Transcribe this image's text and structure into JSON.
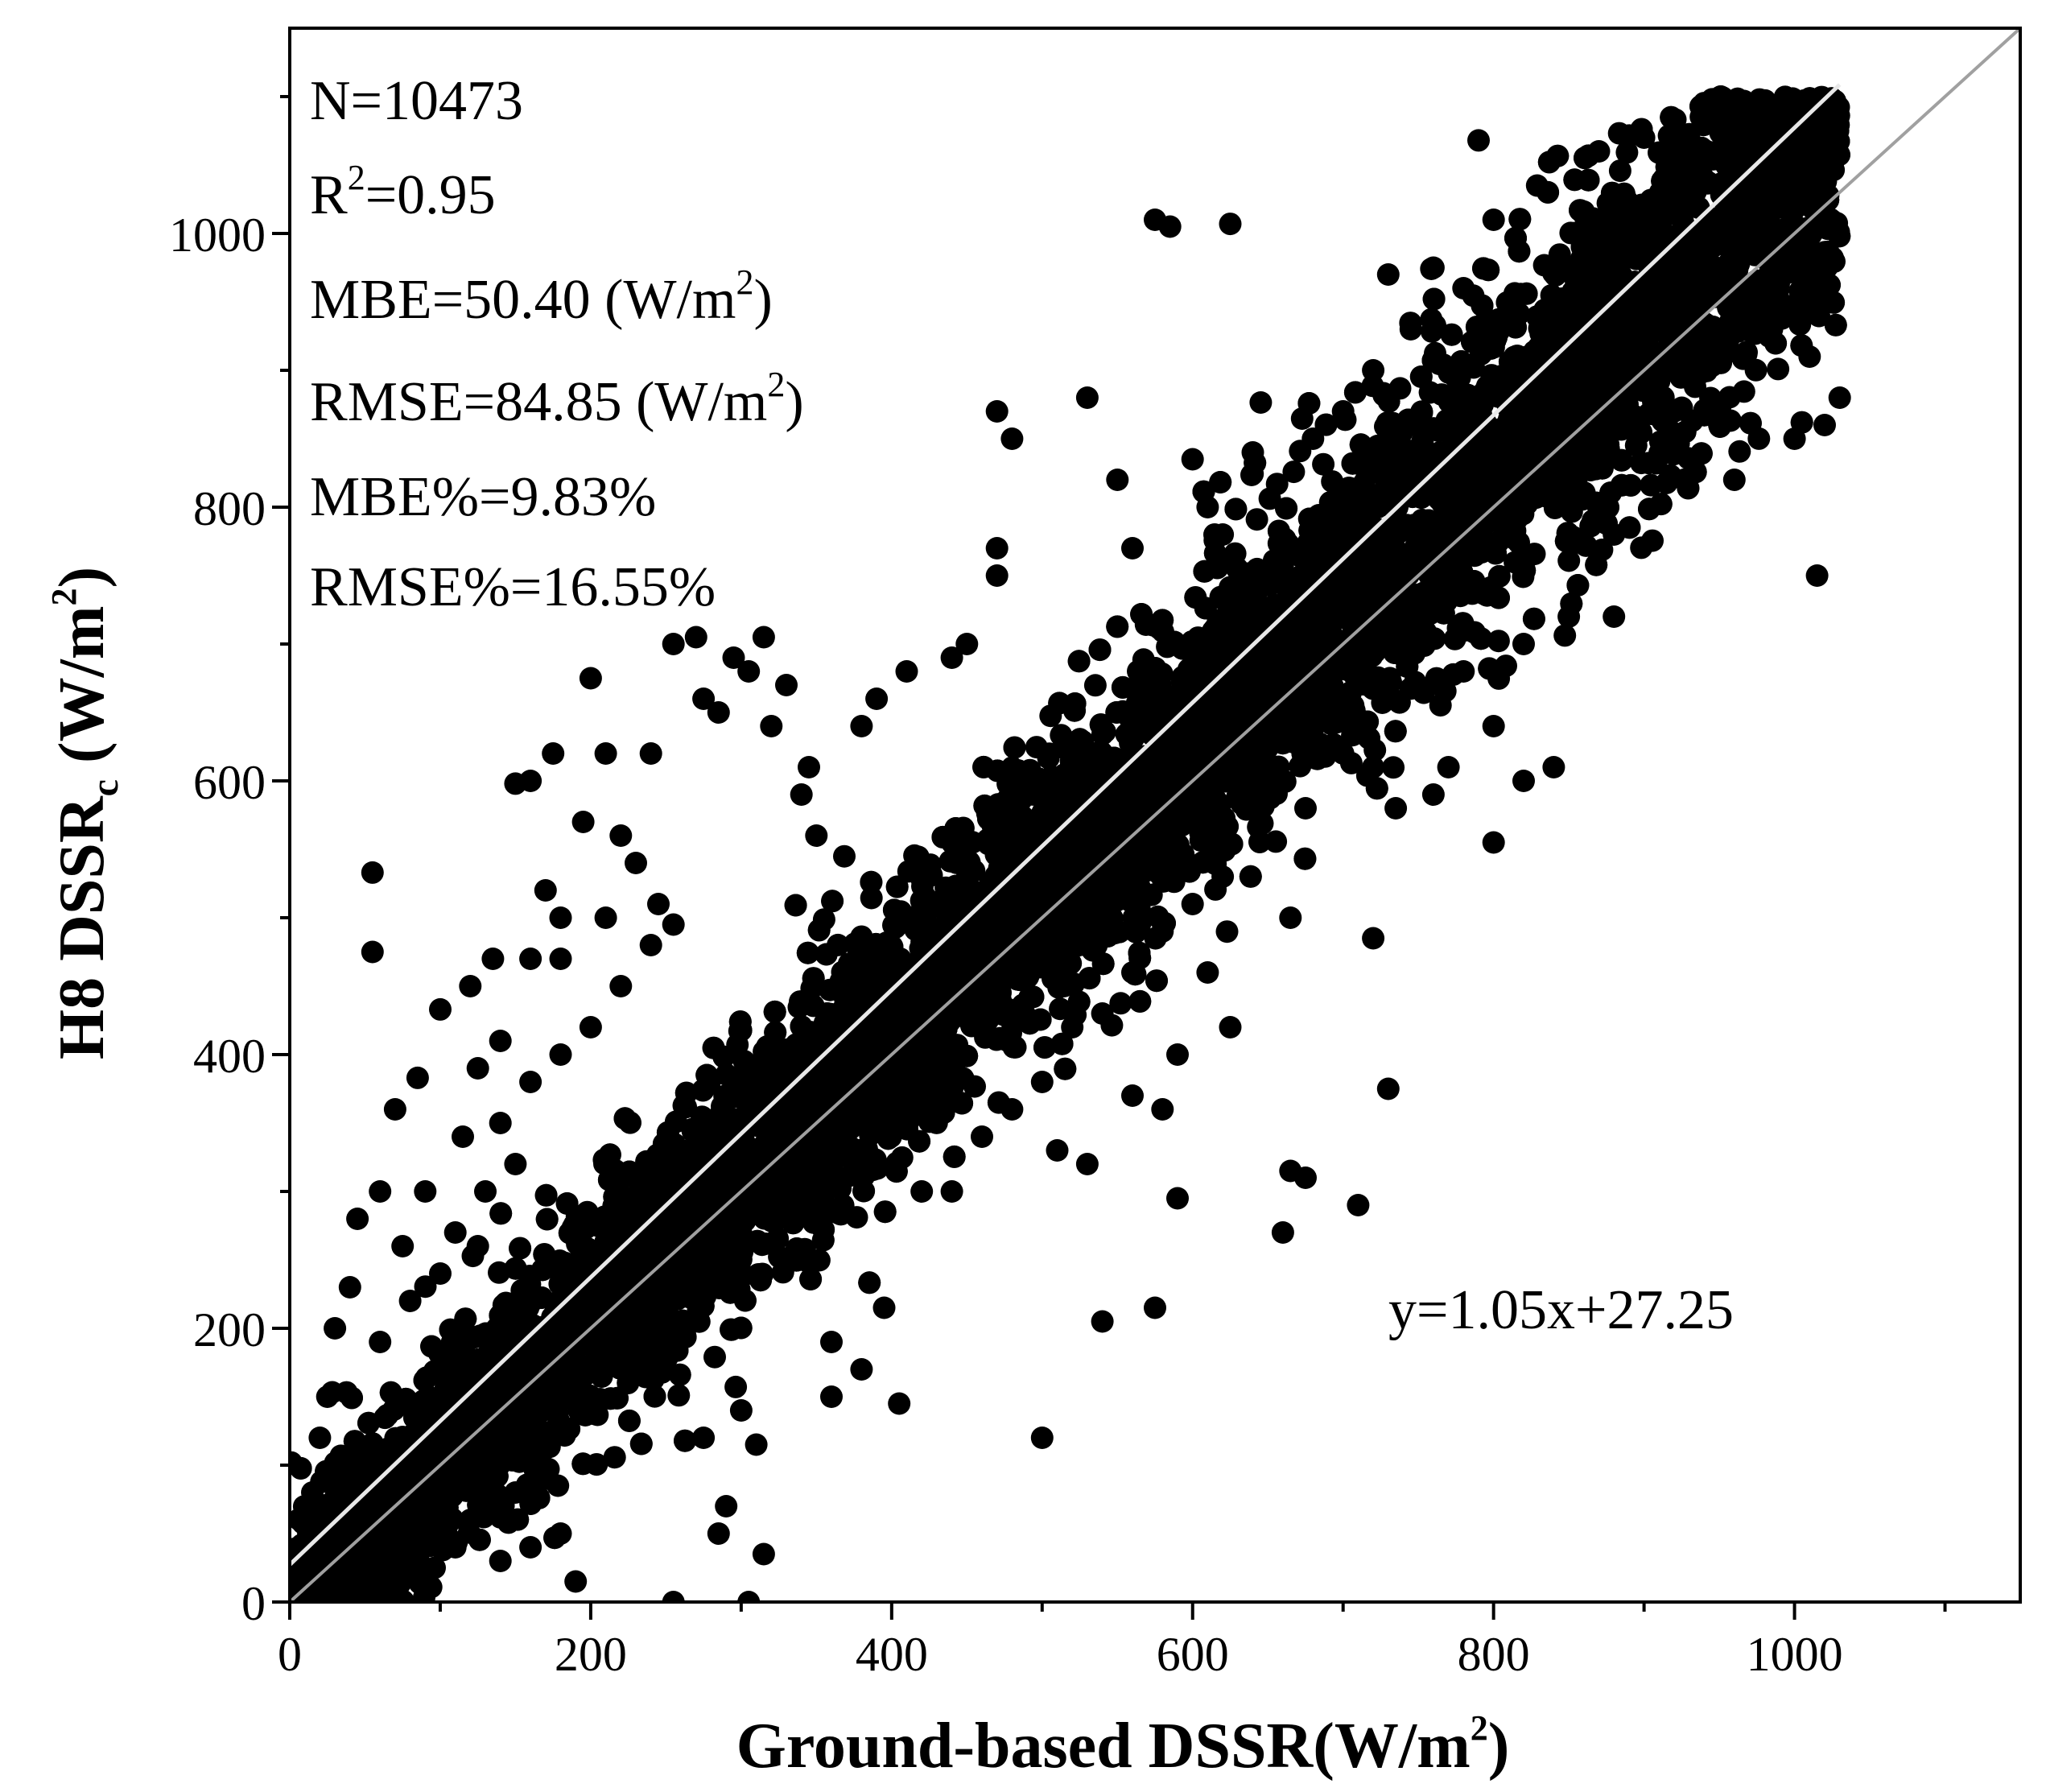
{
  "chart_data": {
    "type": "scatter",
    "xlabel": {
      "main": "Ground-based DSSR(W/m",
      "sup": "2",
      "tail": ")"
    },
    "ylabel": {
      "main": "H8 DSSR",
      "sub": "c",
      "mid": " (W/m",
      "sup": "2",
      "tail": ")"
    },
    "xlim": [
      0,
      1150
    ],
    "ylim": [
      0,
      1150
    ],
    "xticks": [
      0,
      200,
      400,
      600,
      800,
      1000
    ],
    "yticks": [
      0,
      200,
      400,
      600,
      800,
      1000
    ],
    "grid": false,
    "stats": {
      "n": "N=10473",
      "r2": {
        "main": "R",
        "sup": "2",
        "tail": "=0.95"
      },
      "mbe": {
        "main": "MBE=50.40 (W/m",
        "sup": "2",
        "tail": ")"
      },
      "rmse": {
        "main": "RMSE=84.85 (W/m",
        "sup": "2",
        "tail": ")"
      },
      "mbe_pct": "MBE%=9.83%",
      "rmse_pct": "RMSE%=16.55%"
    },
    "fit_equation": "y=1.05x+27.25",
    "fit_line": {
      "slope": 1.05,
      "intercept": 27.25,
      "x_range": [
        0,
        1030
      ]
    },
    "identity_line": {
      "x_range": [
        0,
        1150
      ]
    },
    "point_color": "#000000",
    "line_color": "#a0a0a0",
    "fit_line_color": "#e8e8e8",
    "outliers": [
      [
        55,
        533
      ],
      [
        55,
        475
      ],
      [
        70,
        360
      ],
      [
        85,
        383
      ],
      [
        100,
        433
      ],
      [
        120,
        450
      ],
      [
        135,
        470
      ],
      [
        150,
        598
      ],
      [
        160,
        600
      ],
      [
        175,
        620
      ],
      [
        170,
        520
      ],
      [
        180,
        470
      ],
      [
        195,
        570
      ],
      [
        200,
        675
      ],
      [
        210,
        620
      ],
      [
        220,
        560
      ],
      [
        230,
        540
      ],
      [
        240,
        620
      ],
      [
        245,
        510
      ],
      [
        255,
        495
      ],
      [
        255,
        700
      ],
      [
        270,
        705
      ],
      [
        275,
        660
      ],
      [
        285,
        650
      ],
      [
        295,
        690
      ],
      [
        305,
        680
      ],
      [
        315,
        705
      ],
      [
        320,
        640
      ],
      [
        330,
        670
      ],
      [
        340,
        590
      ],
      [
        345,
        610
      ],
      [
        350,
        560
      ],
      [
        380,
        640
      ],
      [
        390,
        660
      ],
      [
        410,
        680
      ],
      [
        440,
        690
      ],
      [
        450,
        700
      ],
      [
        470,
        770
      ],
      [
        470,
        750
      ],
      [
        480,
        850
      ],
      [
        470,
        870
      ],
      [
        530,
        880
      ],
      [
        550,
        820
      ],
      [
        560,
        770
      ],
      [
        575,
        1010
      ],
      [
        585,
        1005
      ],
      [
        625,
        1007
      ],
      [
        600,
        835
      ],
      [
        610,
        800
      ],
      [
        620,
        780
      ],
      [
        640,
        840
      ],
      [
        680,
        850
      ],
      [
        700,
        870
      ],
      [
        720,
        900
      ],
      [
        730,
        970
      ],
      [
        745,
        930
      ],
      [
        760,
        975
      ],
      [
        780,
        960
      ],
      [
        790,
        1068
      ],
      [
        800,
        1010
      ],
      [
        870,
        1060
      ],
      [
        900,
        1070
      ],
      [
        1000,
        1000
      ],
      [
        1010,
        910
      ],
      [
        1020,
        860
      ],
      [
        1030,
        880
      ],
      [
        950,
        860
      ],
      [
        960,
        820
      ],
      [
        1000,
        850
      ],
      [
        1015,
        750
      ],
      [
        985,
        930
      ],
      [
        940,
        900
      ],
      [
        920,
        870
      ],
      [
        880,
        780
      ],
      [
        880,
        720
      ],
      [
        850,
        720
      ],
      [
        820,
        700
      ],
      [
        800,
        640
      ],
      [
        780,
        680
      ],
      [
        760,
        590
      ],
      [
        770,
        610
      ],
      [
        800,
        555
      ],
      [
        820,
        600
      ],
      [
        840,
        610
      ],
      [
        720,
        610
      ],
      [
        735,
        580
      ],
      [
        700,
        620
      ],
      [
        675,
        580
      ],
      [
        665,
        500
      ],
      [
        720,
        485
      ],
      [
        730,
        375
      ],
      [
        610,
        460
      ],
      [
        625,
        420
      ],
      [
        590,
        400
      ],
      [
        590,
        295
      ],
      [
        575,
        215
      ],
      [
        540,
        205
      ],
      [
        500,
        120
      ],
      [
        530,
        320
      ],
      [
        510,
        330
      ],
      [
        560,
        370
      ],
      [
        580,
        360
      ],
      [
        660,
        270
      ],
      [
        665,
        315
      ],
      [
        675,
        310
      ],
      [
        710,
        290
      ],
      [
        405,
        145
      ],
      [
        380,
        170
      ],
      [
        360,
        190
      ],
      [
        360,
        150
      ],
      [
        300,
        140
      ],
      [
        310,
        115
      ],
      [
        275,
        120
      ],
      [
        290,
        70
      ],
      [
        285,
        50
      ],
      [
        315,
        35
      ],
      [
        305,
        0
      ],
      [
        255,
        0
      ],
      [
        190,
        15
      ],
      [
        180,
        50
      ],
      [
        170,
        90
      ],
      [
        150,
        80
      ],
      [
        160,
        40
      ],
      [
        140,
        30
      ],
      [
        120,
        60
      ],
      [
        100,
        100
      ],
      [
        90,
        80
      ],
      [
        110,
        40
      ],
      [
        60,
        20
      ],
      [
        150,
        320
      ],
      [
        130,
        300
      ],
      [
        110,
        270
      ],
      [
        140,
        350
      ],
      [
        160,
        380
      ],
      [
        180,
        400
      ],
      [
        200,
        420
      ],
      [
        220,
        450
      ],
      [
        240,
        480
      ],
      [
        115,
        340
      ],
      [
        125,
        390
      ],
      [
        140,
        410
      ],
      [
        160,
        470
      ],
      [
        180,
        500
      ],
      [
        210,
        500
      ],
      [
        90,
        300
      ],
      [
        75,
        260
      ],
      [
        60,
        300
      ],
      [
        45,
        280
      ],
      [
        30,
        200
      ],
      [
        20,
        120
      ],
      [
        15,
        80
      ],
      [
        25,
        150
      ],
      [
        40,
        230
      ],
      [
        60,
        190
      ],
      [
        80,
        220
      ],
      [
        100,
        240
      ],
      [
        125,
        260
      ],
      [
        395,
        215
      ],
      [
        420,
        300
      ],
      [
        440,
        300
      ],
      [
        460,
        340
      ],
      [
        480,
        360
      ],
      [
        500,
        380
      ],
      [
        520,
        420
      ],
      [
        540,
        430
      ],
      [
        560,
        460
      ],
      [
        580,
        490
      ],
      [
        600,
        510
      ],
      [
        620,
        530
      ]
    ]
  }
}
